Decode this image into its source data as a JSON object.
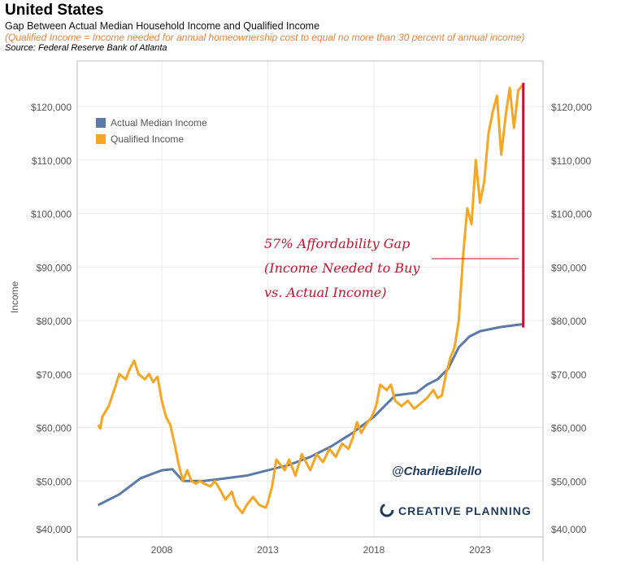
{
  "header": {
    "title": "United States",
    "subtitle": "Gap Between Actual Median Household Income and Qualified Income",
    "note": "(Qualified Income = Income needed for annual homeownership cost to equal no more than 30 percent of annual income)",
    "source": "Source: Federal Reserve Bank of Atlanta"
  },
  "chart_data": {
    "type": "line",
    "ylabel": "Income",
    "ylim": [
      40000,
      127000
    ],
    "xlim": [
      2004,
      2026
    ],
    "x_ticks": [
      2008,
      2013,
      2018,
      2023
    ],
    "y_ticks": [
      40000,
      50000,
      60000,
      70000,
      80000,
      90000,
      100000,
      110000,
      120000
    ],
    "y_tick_labels": [
      "$40,000",
      "$50,000",
      "$60,000",
      "$70,000",
      "$80,000",
      "$90,000",
      "$100,000",
      "$110,000",
      "$120,000"
    ],
    "legend_position": "top-left",
    "series": [
      {
        "name": "Actual Median Income",
        "color": "#5b7aa8",
        "points": [
          [
            2005,
            45500
          ],
          [
            2006,
            47500
          ],
          [
            2007,
            50500
          ],
          [
            2008,
            52000
          ],
          [
            2008.5,
            52200
          ],
          [
            2009,
            50000
          ],
          [
            2010,
            50000
          ],
          [
            2011,
            50500
          ],
          [
            2012,
            51000
          ],
          [
            2013,
            52000
          ],
          [
            2014,
            53000
          ],
          [
            2015,
            54500
          ],
          [
            2016,
            56500
          ],
          [
            2017,
            59000
          ],
          [
            2018,
            62000
          ],
          [
            2018.5,
            64000
          ],
          [
            2019,
            66000
          ],
          [
            2020,
            66500
          ],
          [
            2020.5,
            68000
          ],
          [
            2021,
            69000
          ],
          [
            2021.5,
            71000
          ],
          [
            2022,
            75000
          ],
          [
            2022.5,
            77000
          ],
          [
            2023,
            78000
          ],
          [
            2024,
            78800
          ],
          [
            2025,
            79300
          ]
        ]
      },
      {
        "name": "Qualified Income",
        "color": "#f5a623",
        "points": [
          [
            2005,
            60500
          ],
          [
            2005.1,
            59800
          ],
          [
            2005.2,
            62000
          ],
          [
            2005.5,
            64000
          ],
          [
            2005.8,
            67500
          ],
          [
            2006,
            70000
          ],
          [
            2006.3,
            69000
          ],
          [
            2006.5,
            71000
          ],
          [
            2006.7,
            72500
          ],
          [
            2006.9,
            70000
          ],
          [
            2007.2,
            69000
          ],
          [
            2007.4,
            70000
          ],
          [
            2007.6,
            68500
          ],
          [
            2007.8,
            69500
          ],
          [
            2008,
            65000
          ],
          [
            2008.2,
            62000
          ],
          [
            2008.4,
            60500
          ],
          [
            2008.6,
            57000
          ],
          [
            2008.8,
            53000
          ],
          [
            2009,
            50000
          ],
          [
            2009.2,
            52000
          ],
          [
            2009.4,
            50000
          ],
          [
            2009.6,
            49500
          ],
          [
            2009.8,
            50000
          ],
          [
            2010,
            49500
          ],
          [
            2010.3,
            49000
          ],
          [
            2010.5,
            50000
          ],
          [
            2010.8,
            48000
          ],
          [
            2011,
            46500
          ],
          [
            2011.3,
            48000
          ],
          [
            2011.5,
            45500
          ],
          [
            2011.8,
            44000
          ],
          [
            2012,
            45500
          ],
          [
            2012.3,
            47000
          ],
          [
            2012.6,
            45500
          ],
          [
            2012.9,
            45000
          ],
          [
            2013,
            46000
          ],
          [
            2013.2,
            49000
          ],
          [
            2013.4,
            54000
          ],
          [
            2013.6,
            53000
          ],
          [
            2013.8,
            52000
          ],
          [
            2014,
            54000
          ],
          [
            2014.3,
            51000
          ],
          [
            2014.6,
            55000
          ],
          [
            2014.8,
            53500
          ],
          [
            2015,
            52000
          ],
          [
            2015.3,
            55000
          ],
          [
            2015.6,
            53500
          ],
          [
            2015.9,
            56000
          ],
          [
            2016.2,
            54500
          ],
          [
            2016.5,
            57000
          ],
          [
            2016.8,
            56000
          ],
          [
            2017,
            58000
          ],
          [
            2017.2,
            61000
          ],
          [
            2017.4,
            59000
          ],
          [
            2017.7,
            61000
          ],
          [
            2017.9,
            62000
          ],
          [
            2018.1,
            64000
          ],
          [
            2018.3,
            68000
          ],
          [
            2018.6,
            67000
          ],
          [
            2018.8,
            68000
          ],
          [
            2019,
            65000
          ],
          [
            2019.3,
            64000
          ],
          [
            2019.6,
            65000
          ],
          [
            2019.9,
            63500
          ],
          [
            2020.2,
            64500
          ],
          [
            2020.5,
            65500
          ],
          [
            2020.8,
            67000
          ],
          [
            2021,
            65500
          ],
          [
            2021.2,
            66000
          ],
          [
            2021.4,
            70000
          ],
          [
            2021.6,
            73000
          ],
          [
            2021.8,
            75000
          ],
          [
            2022,
            80000
          ],
          [
            2022.2,
            92000
          ],
          [
            2022.4,
            101000
          ],
          [
            2022.6,
            98000
          ],
          [
            2022.8,
            110000
          ],
          [
            2023,
            102000
          ],
          [
            2023.2,
            106000
          ],
          [
            2023.4,
            115000
          ],
          [
            2023.6,
            119000
          ],
          [
            2023.8,
            122000
          ],
          [
            2024,
            111000
          ],
          [
            2024.2,
            118000
          ],
          [
            2024.4,
            123500
          ],
          [
            2024.6,
            116000
          ],
          [
            2024.8,
            123000
          ],
          [
            2025,
            124000
          ]
        ]
      }
    ],
    "annotation": {
      "lines": [
        "57% Affordability Gap",
        "(Income Needed to Buy",
        "vs. Actual Income)"
      ],
      "gap_x": 2025,
      "gap_from": 79300,
      "gap_to": 124000,
      "color": "#c8102e"
    }
  },
  "watermark": "@CharlieBilello",
  "logo": "CREATIVE PLANNING"
}
